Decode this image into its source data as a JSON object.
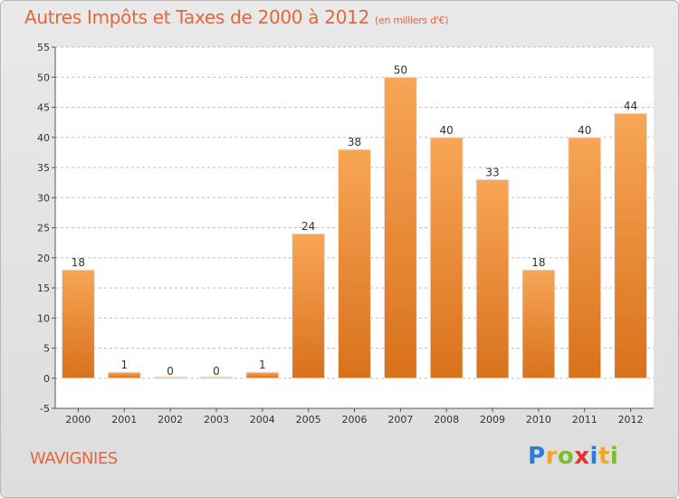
{
  "title": "Autres Impôts et Taxes de 2000 à 2012",
  "unit": "(en milliers d'€)",
  "city": "WAVIGNIES",
  "logo": {
    "text": "Proxiti",
    "letters": [
      {
        "ch": "P",
        "color": "#2a7fd4"
      },
      {
        "ch": "r",
        "color": "#f5a623"
      },
      {
        "ch": "o",
        "color": "#7bbf2a"
      },
      {
        "ch": "x",
        "color": "#e8322c"
      },
      {
        "ch": "i",
        "color": "#2a7fd4"
      },
      {
        "ch": "t",
        "color": "#f5a623"
      },
      {
        "ch": "i",
        "color": "#7bbf2a"
      }
    ]
  },
  "colors": {
    "bar_top": "#f7a656",
    "bar_bottom": "#d9711c",
    "grid": "#bdbdbd",
    "plot_bg": "#ffffff",
    "title": "#e5663a"
  },
  "chart_data": {
    "type": "bar",
    "categories": [
      "2000",
      "2001",
      "2002",
      "2003",
      "2004",
      "2005",
      "2006",
      "2007",
      "2008",
      "2009",
      "2010",
      "2011",
      "2012"
    ],
    "values": [
      18,
      1,
      0,
      0,
      1,
      24,
      38,
      50,
      40,
      33,
      18,
      40,
      44
    ],
    "ylim": [
      -5,
      55
    ],
    "yticks": [
      -5,
      0,
      5,
      10,
      15,
      20,
      25,
      30,
      35,
      40,
      45,
      50,
      55
    ],
    "grid": true,
    "data_labels": true
  }
}
